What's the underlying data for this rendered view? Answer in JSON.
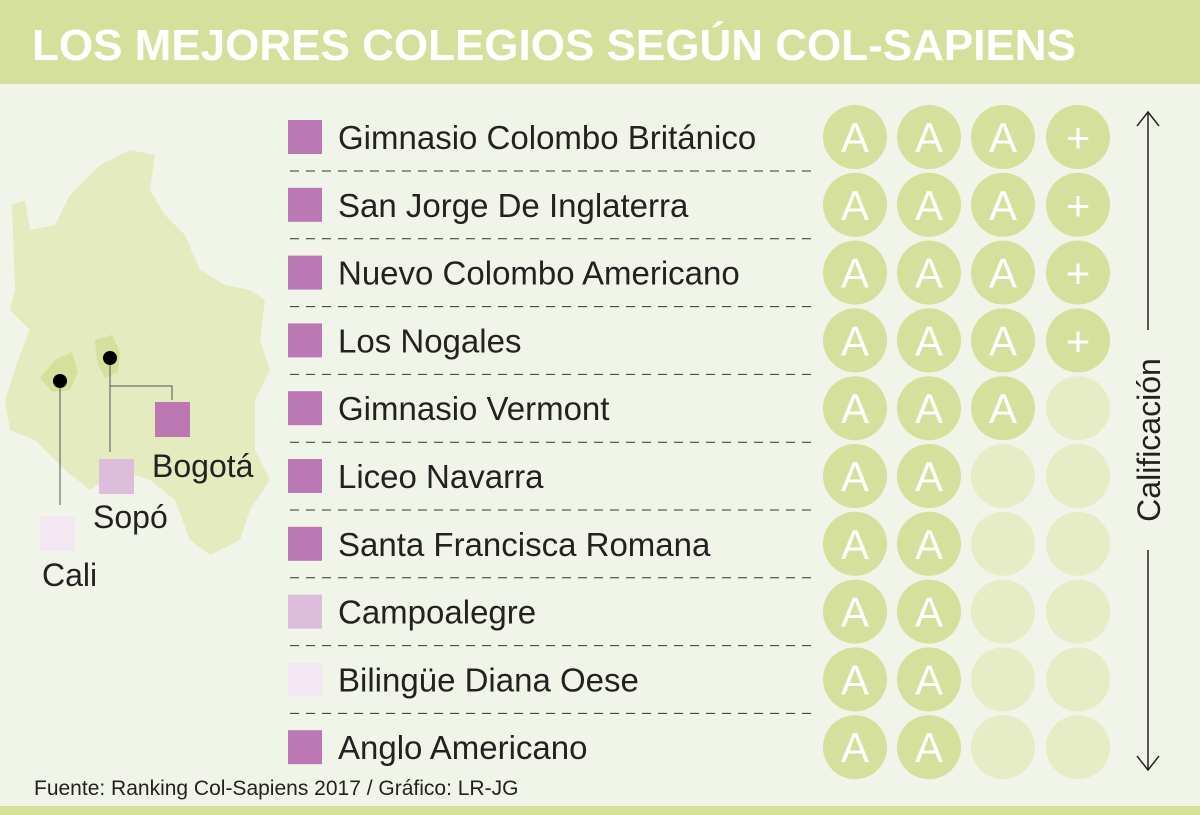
{
  "title": "LOS MEJORES COLEGIOS SEGÚN COL-SAPIENS",
  "legend": [
    {
      "label": "Bogotá",
      "color": "#bb78b4"
    },
    {
      "label": "Sopó",
      "color": "#dcbddb"
    },
    {
      "label": "Cali",
      "color": "#f3e8f2"
    }
  ],
  "schools": [
    {
      "name": "Gimnasio Colombo Británico",
      "color": "#bb78b4",
      "rating": [
        "A",
        "A",
        "A",
        "+"
      ]
    },
    {
      "name": "San Jorge De Inglaterra",
      "color": "#bb78b4",
      "rating": [
        "A",
        "A",
        "A",
        "+"
      ]
    },
    {
      "name": "Nuevo Colombo Americano",
      "color": "#bb78b4",
      "rating": [
        "A",
        "A",
        "A",
        "+"
      ]
    },
    {
      "name": "Los Nogales",
      "color": "#bb78b4",
      "rating": [
        "A",
        "A",
        "A",
        "+"
      ]
    },
    {
      "name": "Gimnasio Vermont",
      "color": "#bb78b4",
      "rating": [
        "A",
        "A",
        "A"
      ]
    },
    {
      "name": "Liceo Navarra",
      "color": "#bb78b4",
      "rating": [
        "A",
        "A"
      ]
    },
    {
      "name": "Santa Francisca Romana",
      "color": "#bb78b4",
      "rating": [
        "A",
        "A"
      ]
    },
    {
      "name": "Campoalegre",
      "color": "#dcbddb",
      "rating": [
        "A",
        "A"
      ]
    },
    {
      "name": "Bilingüe Diana Oese",
      "color": "#f3e8f2",
      "rating": [
        "A",
        "A"
      ]
    },
    {
      "name": "Anglo Americano",
      "color": "#bb78b4",
      "rating": [
        "A",
        "A"
      ]
    }
  ],
  "axis_label": "Calificación",
  "source": "Fuente: Ranking Col-Sapiens 2017 / Gráfico: LR-JG"
}
